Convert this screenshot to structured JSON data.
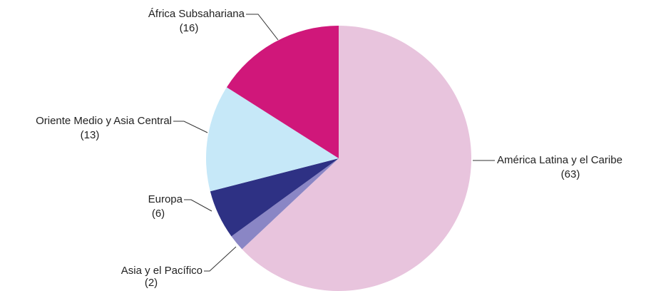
{
  "chart_data": {
    "type": "pie",
    "categories": [
      "América Latina y el Caribe",
      "Asia y el Pacífico",
      "Europa",
      "Oriente Medio y Asia Central",
      "África Subsahariana"
    ],
    "values": [
      63,
      2,
      6,
      13,
      16
    ],
    "value_labels": [
      "(63)",
      "(2)",
      "(6)",
      "(13)",
      "(16)"
    ],
    "colors": [
      "#e8c4dd",
      "#8a86c5",
      "#2e3184",
      "#c6e8f8",
      "#d0177a"
    ]
  }
}
